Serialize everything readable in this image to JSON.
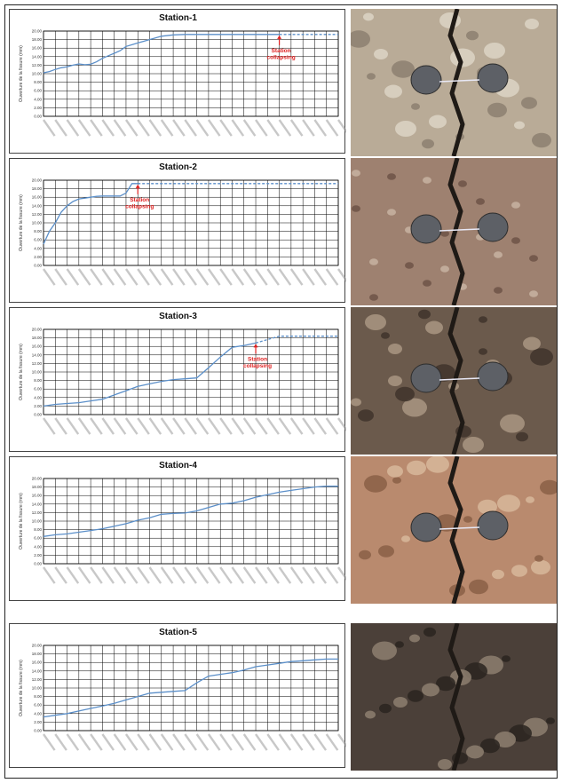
{
  "figure": {
    "y_axis_label": "Ouverture de la fissure (mm)",
    "annotation_text": [
      "Station",
      "collapsing"
    ],
    "colors": {
      "line": "#5b8fc9",
      "annotation": "#e02020",
      "grid": "#000000"
    }
  },
  "photos": [
    {
      "description_icon": "rock-fissure-photo-1"
    },
    {
      "description_icon": "rock-fissure-photo-2"
    },
    {
      "description_icon": "rock-fissure-photo-3"
    },
    {
      "description_icon": "rock-fissure-photo-4"
    },
    {
      "description_icon": "rock-fissure-photo-5"
    }
  ],
  "chart_data": [
    {
      "type": "line",
      "title": "Station-1",
      "ylabel": "Ouverture de la fissure (mm)",
      "ylim": [
        0,
        20
      ],
      "yticks": [
        "0.00",
        "2.00",
        "4.00",
        "6.00",
        "8.00",
        "10.00",
        "12.00",
        "14.00",
        "16.00",
        "18.00",
        "20.00"
      ],
      "x_tick_count": 26,
      "series": [
        {
          "x": [
            0,
            0.5,
            1,
            1.5,
            2,
            2.5,
            3,
            3.5,
            4,
            4.5,
            5,
            5.5,
            6,
            6.5,
            7,
            7.5,
            8,
            8.5,
            9,
            10,
            11,
            12,
            13,
            14,
            15,
            16,
            17,
            18,
            19,
            20,
            21,
            22,
            23,
            24,
            25
          ],
          "values": [
            10.2,
            10.5,
            11.0,
            11.4,
            11.6,
            12.0,
            12.3,
            12.1,
            12.2,
            12.8,
            13.6,
            14.2,
            14.8,
            15.4,
            16.4,
            16.8,
            17.2,
            17.6,
            18.0,
            18.8,
            19.1,
            19.2,
            19.2,
            19.2,
            19.2,
            19.2,
            19.2,
            19.2,
            19.2,
            19.2,
            19.2,
            19.2,
            19.2,
            19.2,
            19.2
          ],
          "collapse_at_x": 20
        }
      ]
    },
    {
      "type": "line",
      "title": "Station-2",
      "ylabel": "Ouverture de la fissure (mm)",
      "ylim": [
        0,
        20
      ],
      "yticks": [
        "0.00",
        "2.00",
        "4.00",
        "6.00",
        "8.00",
        "10.00",
        "12.00",
        "14.00",
        "16.00",
        "18.00",
        "20.00"
      ],
      "x_tick_count": 26,
      "series": [
        {
          "x": [
            0,
            0.5,
            1,
            1.5,
            2,
            2.5,
            3,
            3.5,
            4,
            4.5,
            5,
            5.5,
            6,
            6.5,
            7,
            7.5,
            8,
            8.5,
            9,
            9.5,
            10,
            11,
            12,
            13,
            14,
            15,
            16,
            17,
            18,
            19,
            20,
            21,
            22,
            23,
            24,
            25
          ],
          "values": [
            5.0,
            8.0,
            10.0,
            12.5,
            14.0,
            15.0,
            15.6,
            15.8,
            16.0,
            16.2,
            16.3,
            16.3,
            16.3,
            16.3,
            17.0,
            19.2,
            19.2,
            19.2,
            19.2,
            19.2,
            19.2,
            19.2,
            19.2,
            19.2,
            19.2,
            19.2,
            19.2,
            19.2,
            19.2,
            19.2,
            19.2,
            19.2,
            19.2,
            19.2,
            19.2,
            19.2
          ],
          "collapse_at_x": 8
        }
      ]
    },
    {
      "type": "line",
      "title": "Station-3",
      "ylabel": "Ouverture de la fissure (mm)",
      "ylim": [
        0,
        20
      ],
      "yticks": [
        "0.00",
        "2.00",
        "4.00",
        "6.00",
        "8.00",
        "10.00",
        "12.00",
        "14.00",
        "16.00",
        "18.00",
        "20.00"
      ],
      "x_tick_count": 26,
      "series": [
        {
          "x": [
            0,
            1,
            2,
            3,
            4,
            5,
            6,
            7,
            8,
            9,
            10,
            11,
            12,
            13,
            14,
            15,
            16,
            17,
            18,
            19,
            20,
            21,
            22,
            23,
            24,
            25
          ],
          "values": [
            2.0,
            2.4,
            2.6,
            2.8,
            3.2,
            3.6,
            4.6,
            5.6,
            6.6,
            7.2,
            7.8,
            8.2,
            8.4,
            8.6,
            11.0,
            13.5,
            15.8,
            16.2,
            16.8,
            17.6,
            18.4,
            18.4,
            18.4,
            18.4,
            18.4,
            18.4
          ],
          "collapse_at_x": 18
        }
      ]
    },
    {
      "type": "line",
      "title": "Station-4",
      "ylabel": "Ouverture de la fissure (mm)",
      "ylim": [
        0,
        20
      ],
      "yticks": [
        "0.00",
        "2.00",
        "4.00",
        "6.00",
        "8.00",
        "10.00",
        "12.00",
        "14.00",
        "16.00",
        "18.00",
        "20.00"
      ],
      "x_tick_count": 26,
      "series": [
        {
          "x": [
            0,
            1,
            2,
            3,
            4,
            5,
            6,
            7,
            8,
            9,
            10,
            11,
            12,
            13,
            14,
            15,
            16,
            17,
            18,
            19,
            20,
            21,
            22,
            23,
            24,
            25
          ],
          "values": [
            6.4,
            6.8,
            7.0,
            7.4,
            7.8,
            8.2,
            8.8,
            9.4,
            10.2,
            10.8,
            11.6,
            11.8,
            11.9,
            12.4,
            13.2,
            14.0,
            14.2,
            14.8,
            15.6,
            16.2,
            16.8,
            17.2,
            17.6,
            18.0,
            18.2,
            18.2
          ],
          "collapse_at_x": null
        }
      ]
    },
    {
      "type": "line",
      "title": "Station-5",
      "ylabel": "Ouverture de la fissure (mm)",
      "ylim": [
        0,
        20
      ],
      "yticks": [
        "0.00",
        "2.00",
        "4.00",
        "6.00",
        "8.00",
        "10.00",
        "12.00",
        "14.00",
        "16.00",
        "18.00",
        "20.00"
      ],
      "x_tick_count": 26,
      "series": [
        {
          "x": [
            0,
            1,
            2,
            3,
            4,
            5,
            6,
            7,
            8,
            9,
            10,
            11,
            12,
            13,
            14,
            15,
            16,
            17,
            18,
            19,
            20,
            21,
            22,
            23,
            24,
            25
          ],
          "values": [
            3.2,
            3.6,
            4.0,
            4.6,
            5.2,
            5.8,
            6.4,
            7.2,
            8.0,
            8.8,
            9.0,
            9.2,
            9.4,
            11.2,
            12.8,
            13.2,
            13.6,
            14.2,
            15.0,
            15.4,
            15.8,
            16.2,
            16.4,
            16.6,
            16.8,
            16.8
          ],
          "collapse_at_x": null
        }
      ]
    }
  ]
}
